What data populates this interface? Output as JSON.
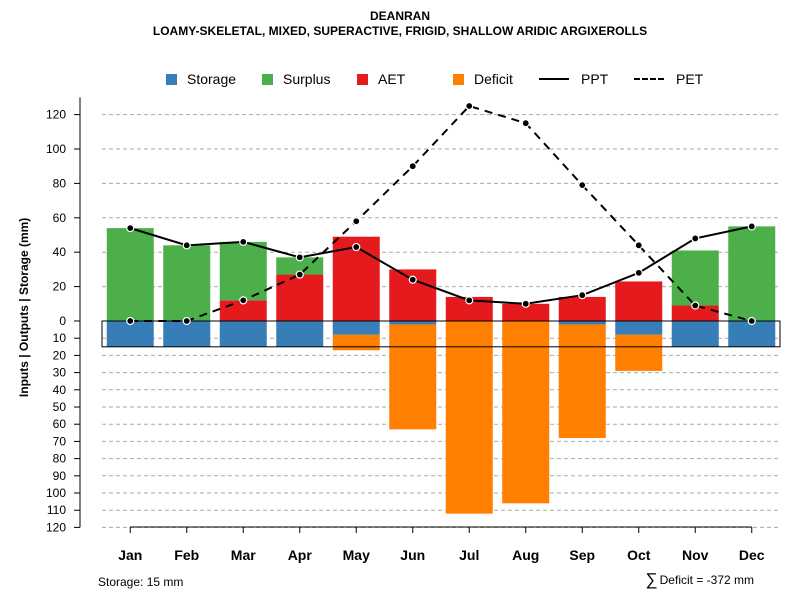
{
  "title": "DEANRAN",
  "subtitle": "LOAMY-SKELETAL, MIXED, SUPERACTIVE, FRIGID, SHALLOW ARIDIC ARGIXEROLLS",
  "legend": [
    {
      "label": "Storage",
      "type": "box",
      "color": "#377eb8"
    },
    {
      "label": "Surplus",
      "type": "box",
      "color": "#4daf4a"
    },
    {
      "label": "AET",
      "type": "box",
      "color": "#e41a1c"
    },
    {
      "label": "Deficit",
      "type": "box",
      "color": "#ff7f00"
    },
    {
      "label": "PPT",
      "type": "solid",
      "color": "#000000"
    },
    {
      "label": "PET",
      "type": "dashed",
      "color": "#000000"
    }
  ],
  "footer": {
    "storage": "Storage: 15 mm",
    "sigma": "∑",
    "deficit": "Deficit = -372 mm"
  },
  "chart_data": {
    "type": "bar",
    "ylabel": "Inputs | Outputs | Storage    (mm)",
    "upper_ticks": [
      0,
      20,
      40,
      60,
      80,
      100,
      120
    ],
    "lower_ticks": [
      10,
      20,
      30,
      40,
      50,
      60,
      70,
      80,
      90,
      100,
      110,
      120
    ],
    "ylim": [
      -120,
      130
    ],
    "categories": [
      "Jan",
      "Feb",
      "Mar",
      "Apr",
      "May",
      "Jun",
      "Jul",
      "Aug",
      "Sep",
      "Oct",
      "Nov",
      "Dec"
    ],
    "storage_capacity": 15,
    "series": [
      {
        "name": "Storage",
        "values": [
          15,
          15,
          15,
          15,
          8,
          2,
          0,
          0,
          2,
          8,
          15,
          15
        ]
      },
      {
        "name": "AET",
        "values": [
          0,
          0,
          12,
          27,
          49,
          30,
          14,
          10,
          14,
          23,
          9,
          0
        ]
      },
      {
        "name": "Surplus",
        "values": [
          54,
          44,
          34,
          10,
          0,
          0,
          0,
          0,
          0,
          0,
          32,
          55
        ]
      },
      {
        "name": "Deficit",
        "values": [
          0,
          0,
          0,
          0,
          9,
          61,
          112,
          106,
          66,
          21,
          0,
          0
        ]
      },
      {
        "name": "PPT",
        "values": [
          54,
          44,
          46,
          37,
          43,
          24,
          12,
          10,
          15,
          28,
          48,
          55
        ]
      },
      {
        "name": "PET",
        "values": [
          0,
          0,
          12,
          27,
          58,
          90,
          125,
          115,
          79,
          44,
          9,
          0
        ]
      }
    ]
  }
}
